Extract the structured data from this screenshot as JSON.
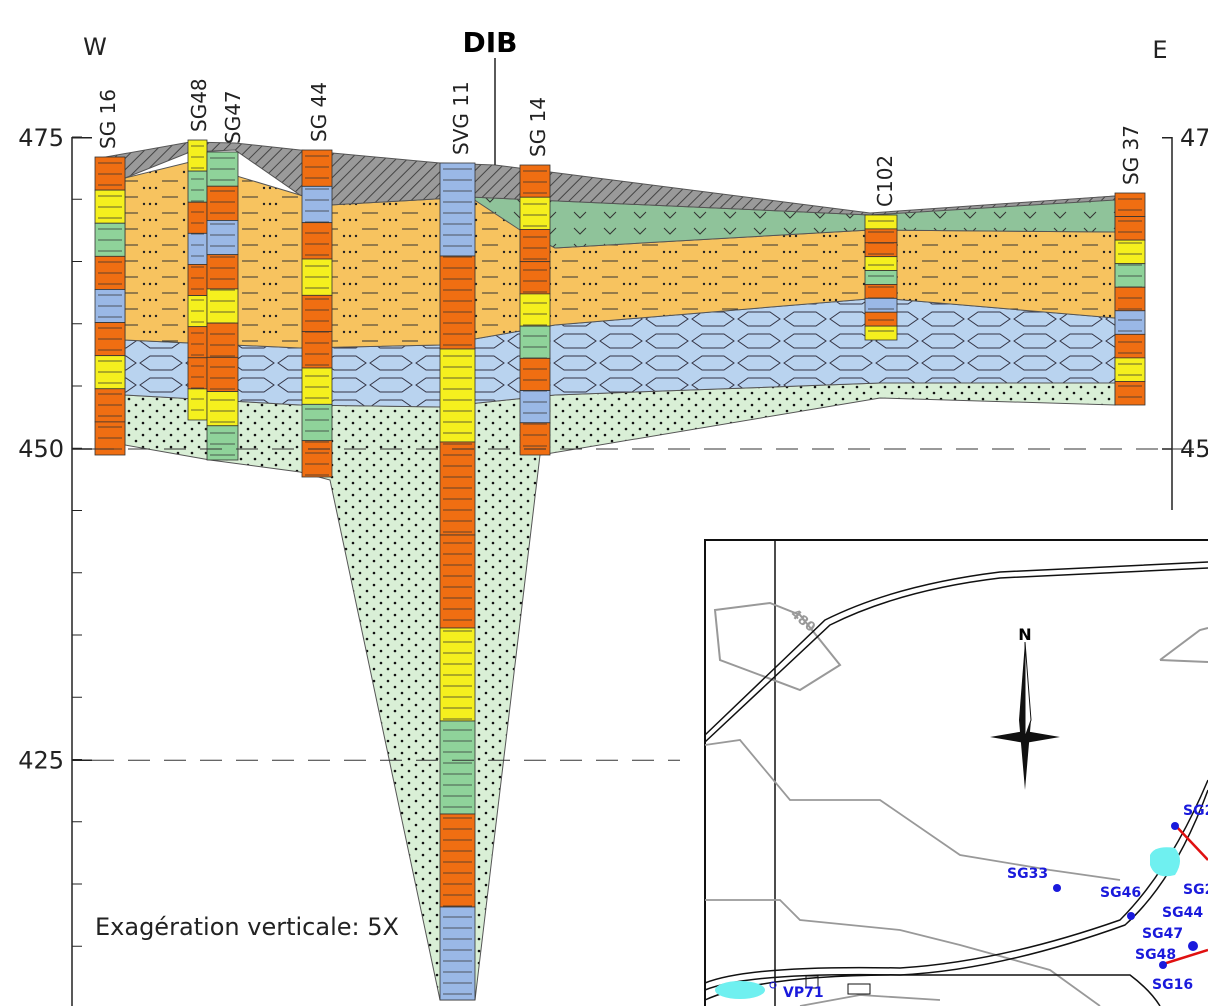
{
  "cross_section": {
    "west": "W",
    "east": "E",
    "title": "DIB",
    "elevation_ticks": [
      475,
      450,
      425
    ],
    "boreholes": [
      "SG 16",
      "SG48",
      "SG47",
      "SG 44",
      "SVG 11",
      "SG 14",
      "C102",
      "SG 37"
    ],
    "note": "Exagération verticale: 5X"
  },
  "map": {
    "north": "N",
    "contour": "480",
    "labels": [
      "SG2",
      "SG33",
      "SG46",
      "SG2",
      "SG44",
      "SG47",
      "SG48",
      "SG16",
      "VP71"
    ]
  }
}
